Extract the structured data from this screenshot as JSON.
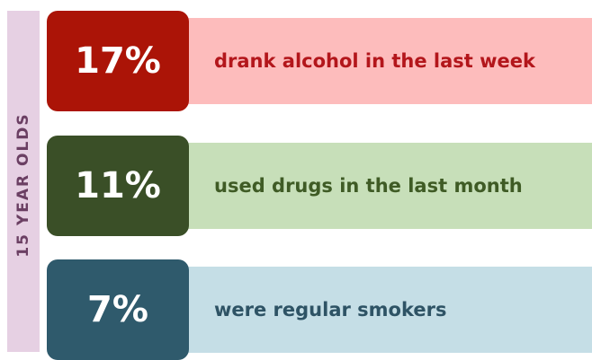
{
  "side_label": "15 YEAR OLDS",
  "stats": [
    {
      "value": "17%",
      "label": "drank alcohol in the last week",
      "box_color": "#ab1407",
      "strip_color": "#fdbcbc",
      "text_color": "#b3161b"
    },
    {
      "value": "11%",
      "label": "used drugs in the last month",
      "box_color": "#3a4f27",
      "strip_color": "#c7dfb9",
      "text_color": "#3f5b25"
    },
    {
      "value": "7%",
      "label": "were regular smokers",
      "box_color": "#2f5a6c",
      "strip_color": "#c5dee6",
      "text_color": "#2e5365"
    }
  ],
  "chart_data": {
    "type": "table",
    "side_label": "15 YEAR OLDS",
    "categories": [
      "drank alcohol in the last week",
      "used drugs in the last month",
      "were regular smokers"
    ],
    "values": [
      17,
      11,
      7
    ],
    "unit": "%"
  }
}
